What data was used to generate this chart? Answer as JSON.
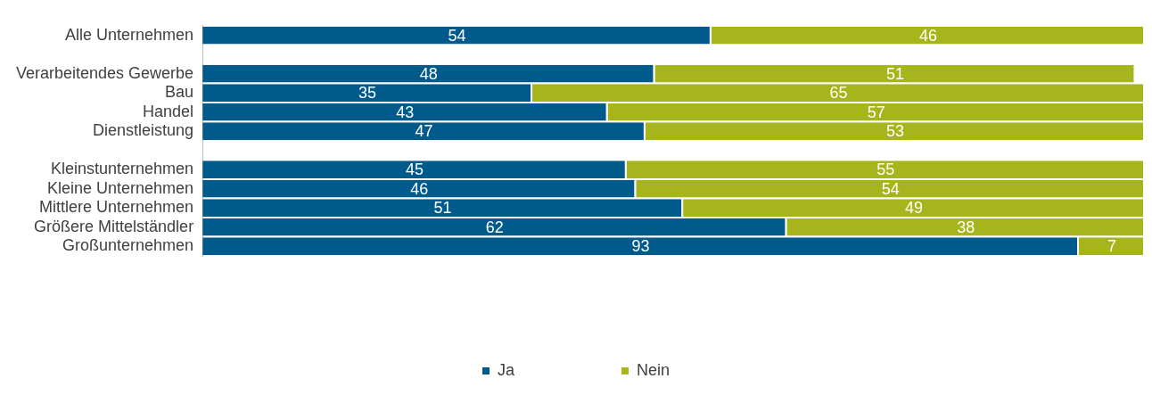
{
  "chart_data": {
    "type": "bar",
    "orientation": "horizontal",
    "stacked": true,
    "categories": [
      "Alle Unternehmen",
      null,
      "Verarbeitendes Gewerbe",
      "Bau",
      "Handel",
      "Dienstleistung",
      null,
      "Kleinstunternehmen",
      "Kleine Unternehmen",
      "Mittlere Unternehmen",
      "Größere Mittelständler",
      "Großunternehmen"
    ],
    "series": [
      {
        "name": "Ja",
        "color": "#005b8c",
        "values": [
          54,
          null,
          48,
          35,
          43,
          47,
          null,
          45,
          46,
          51,
          62,
          93
        ]
      },
      {
        "name": "Nein",
        "color": "#a5b51b",
        "values": [
          46,
          null,
          51,
          65,
          57,
          53,
          null,
          55,
          54,
          49,
          38,
          7
        ]
      }
    ],
    "xlim": [
      0,
      100
    ],
    "tick_labels": "y",
    "data_labels": true,
    "grid": false,
    "legend": "bottom"
  }
}
